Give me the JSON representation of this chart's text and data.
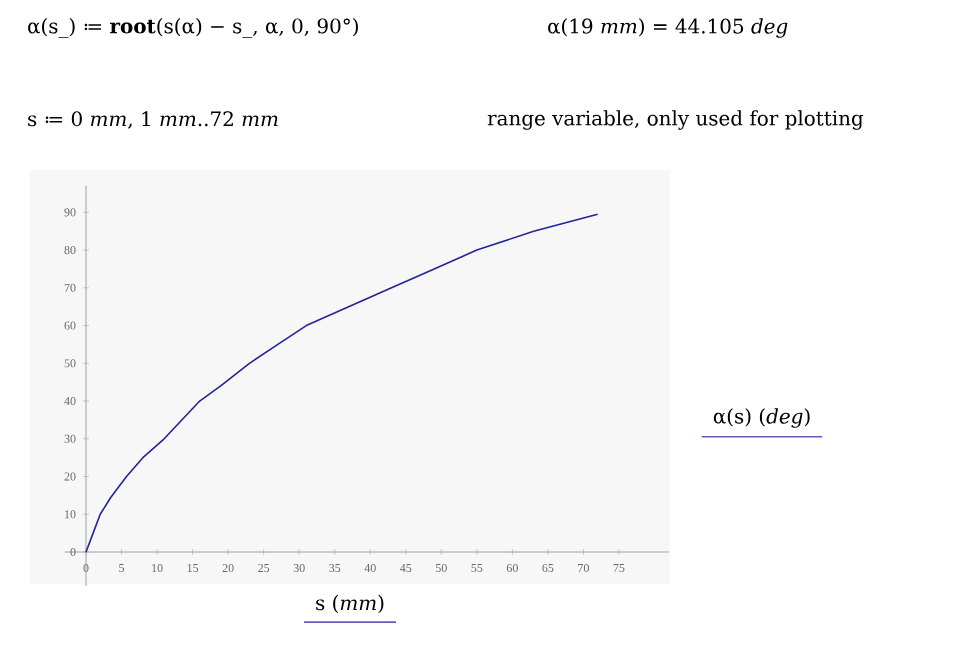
{
  "chart_data": {
    "type": "line",
    "xlabel": "s (*mm*)",
    "ylabel": "α(s) (*deg*)",
    "annotations": [
      "α(s_) ≔ **root**(s(α) − s_, α, 0, 90°)",
      "α(19 *mm*) = 44.105 *deg*",
      "s ≔ 0 *mm*, 1 *mm*..72 *mm*",
      "range variable, only used for plotting"
    ],
    "x": [
      0,
      1,
      2,
      3.5,
      5.7,
      8,
      11,
      13.5,
      16,
      19,
      23,
      27,
      31,
      37,
      43,
      49,
      55,
      63,
      72
    ],
    "series": [
      {
        "color": "#23239a",
        "values": [
          0,
          5,
          10,
          14.5,
          20,
          25,
          30,
          35,
          40,
          44.1,
          50,
          55,
          60,
          65,
          70,
          75,
          80,
          85,
          89.5
        ]
      }
    ],
    "xlim": [
      -3,
      82
    ],
    "ylim": [
      -9,
      97
    ],
    "xticks": [
      0,
      5,
      10,
      15,
      20,
      25,
      30,
      35,
      40,
      45,
      50,
      55,
      60,
      65,
      70,
      75
    ],
    "yticks": [
      0,
      10,
      20,
      30,
      40,
      50,
      60,
      70,
      80,
      90
    ]
  }
}
